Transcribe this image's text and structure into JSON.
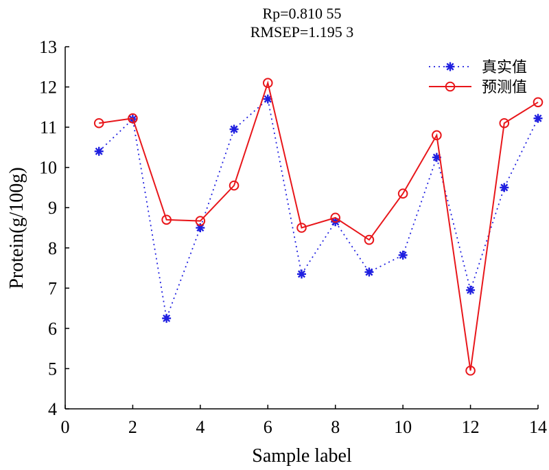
{
  "chart_data": {
    "type": "line",
    "title_lines": [
      "Rp=0.810 55",
      "RMSEP=1.195 3"
    ],
    "xlabel": "Sample label",
    "ylabel": "Protein(g/100g)",
    "xlim": [
      0,
      14
    ],
    "ylim": [
      4,
      13
    ],
    "xticks": [
      0,
      2,
      4,
      6,
      8,
      10,
      12,
      14
    ],
    "yticks": [
      4,
      5,
      6,
      7,
      8,
      9,
      10,
      11,
      12,
      13
    ],
    "grid": false,
    "legend_position": "top-right",
    "x": [
      1,
      2,
      3,
      4,
      5,
      6,
      7,
      8,
      9,
      10,
      11,
      12,
      13,
      14
    ],
    "series": [
      {
        "name": "真实值",
        "color": "#1f1fe0",
        "line_style": "dotted",
        "marker": "asterisk",
        "values": [
          10.4,
          11.2,
          6.25,
          8.5,
          10.95,
          11.7,
          7.35,
          8.65,
          7.4,
          7.82,
          10.25,
          6.95,
          9.5,
          11.22
        ]
      },
      {
        "name": "预测值",
        "color": "#e8161a",
        "line_style": "solid",
        "marker": "circle",
        "values": [
          11.1,
          11.22,
          8.7,
          8.67,
          9.55,
          12.1,
          8.5,
          8.75,
          8.2,
          9.35,
          10.8,
          4.95,
          11.1,
          11.62
        ]
      }
    ]
  }
}
